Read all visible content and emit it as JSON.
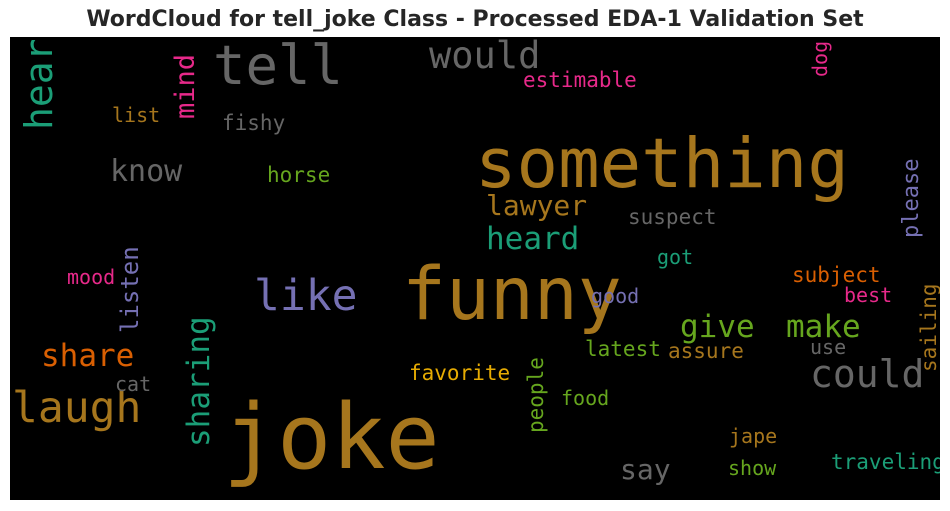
{
  "chart_data": {
    "type": "wordcloud",
    "title": "WordCloud for tell_joke Class - Processed EDA-1 Validation Set",
    "background": "#000000",
    "colormap": "Dark2",
    "words": [
      {
        "text": "joke",
        "weight": 1.0,
        "color": "#a6761d",
        "orientation": "horizontal"
      },
      {
        "text": "funny",
        "weight": 0.82,
        "color": "#a6761d",
        "orientation": "horizontal"
      },
      {
        "text": "something",
        "weight": 0.78,
        "color": "#a6761d",
        "orientation": "horizontal"
      },
      {
        "text": "tell",
        "weight": 0.62,
        "color": "#666666",
        "orientation": "horizontal"
      },
      {
        "text": "like",
        "weight": 0.5,
        "color": "#7570b3",
        "orientation": "horizontal"
      },
      {
        "text": "laugh",
        "weight": 0.5,
        "color": "#a6761d",
        "orientation": "horizontal"
      },
      {
        "text": "could",
        "weight": 0.45,
        "color": "#666666",
        "orientation": "horizontal"
      },
      {
        "text": "hear",
        "weight": 0.45,
        "color": "#1b9e77",
        "orientation": "vertical"
      },
      {
        "text": "would",
        "weight": 0.44,
        "color": "#666666",
        "orientation": "horizontal"
      },
      {
        "text": "share",
        "weight": 0.38,
        "color": "#d95f02",
        "orientation": "horizontal"
      },
      {
        "text": "sharing",
        "weight": 0.38,
        "color": "#1b9e77",
        "orientation": "vertical"
      },
      {
        "text": "give",
        "weight": 0.38,
        "color": "#66a61e",
        "orientation": "horizontal"
      },
      {
        "text": "make",
        "weight": 0.38,
        "color": "#66a61e",
        "orientation": "horizontal"
      },
      {
        "text": "heard",
        "weight": 0.38,
        "color": "#1b9e77",
        "orientation": "horizontal"
      },
      {
        "text": "know",
        "weight": 0.36,
        "color": "#666666",
        "orientation": "horizontal"
      },
      {
        "text": "lawyer",
        "weight": 0.34,
        "color": "#a6761d",
        "orientation": "horizontal"
      },
      {
        "text": "say",
        "weight": 0.34,
        "color": "#666666",
        "orientation": "horizontal"
      },
      {
        "text": "mind",
        "weight": 0.33,
        "color": "#e7298a",
        "orientation": "vertical"
      },
      {
        "text": "listen",
        "weight": 0.3,
        "color": "#7570b3",
        "orientation": "vertical"
      },
      {
        "text": "please",
        "weight": 0.28,
        "color": "#7570b3",
        "orientation": "vertical"
      },
      {
        "text": "people",
        "weight": 0.27,
        "color": "#66a61e",
        "orientation": "vertical"
      },
      {
        "text": "sailing",
        "weight": 0.27,
        "color": "#a6761d",
        "orientation": "vertical"
      },
      {
        "text": "traveling",
        "weight": 0.27,
        "color": "#1b9e77",
        "orientation": "horizontal"
      },
      {
        "text": "favorite",
        "weight": 0.27,
        "color": "#e6ab02",
        "orientation": "horizontal"
      },
      {
        "text": "latest",
        "weight": 0.27,
        "color": "#66a61e",
        "orientation": "horizontal"
      },
      {
        "text": "assure",
        "weight": 0.27,
        "color": "#a6761d",
        "orientation": "horizontal"
      },
      {
        "text": "subject",
        "weight": 0.27,
        "color": "#d95f02",
        "orientation": "horizontal"
      },
      {
        "text": "suspect",
        "weight": 0.27,
        "color": "#666666",
        "orientation": "horizontal"
      },
      {
        "text": "estimable",
        "weight": 0.27,
        "color": "#e7298a",
        "orientation": "horizontal"
      },
      {
        "text": "fishy",
        "weight": 0.27,
        "color": "#666666",
        "orientation": "horizontal"
      },
      {
        "text": "horse",
        "weight": 0.27,
        "color": "#66a61e",
        "orientation": "horizontal"
      },
      {
        "text": "list",
        "weight": 0.26,
        "color": "#a6761d",
        "orientation": "horizontal"
      },
      {
        "text": "mood",
        "weight": 0.26,
        "color": "#e7298a",
        "orientation": "horizontal"
      },
      {
        "text": "cat",
        "weight": 0.26,
        "color": "#666666",
        "orientation": "horizontal"
      },
      {
        "text": "good",
        "weight": 0.26,
        "color": "#7570b3",
        "orientation": "horizontal"
      },
      {
        "text": "got",
        "weight": 0.26,
        "color": "#1b9e77",
        "orientation": "horizontal"
      },
      {
        "text": "best",
        "weight": 0.26,
        "color": "#e7298a",
        "orientation": "horizontal"
      },
      {
        "text": "use",
        "weight": 0.26,
        "color": "#666666",
        "orientation": "horizontal"
      },
      {
        "text": "food",
        "weight": 0.26,
        "color": "#66a61e",
        "orientation": "horizontal"
      },
      {
        "text": "jape",
        "weight": 0.26,
        "color": "#a6761d",
        "orientation": "horizontal"
      },
      {
        "text": "show",
        "weight": 0.26,
        "color": "#66a61e",
        "orientation": "horizontal"
      },
      {
        "text": "dog",
        "weight": 0.26,
        "color": "#e7298a",
        "orientation": "vertical"
      }
    ]
  }
}
